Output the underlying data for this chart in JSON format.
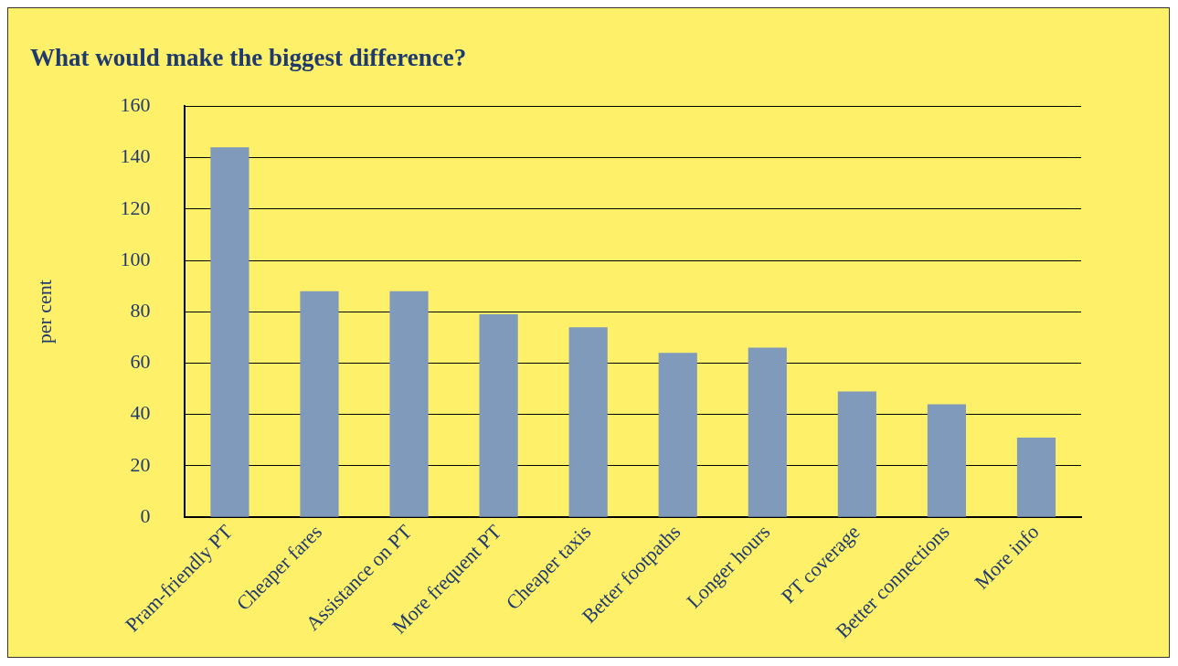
{
  "chart_data": {
    "type": "bar",
    "title": "What would make the biggest difference?",
    "ylabel": "per cent",
    "categories": [
      "Pram-friendly PT",
      "Cheaper fares",
      "Assistance on PT",
      "More frequent PT",
      "Cheaper taxis",
      "Better footpaths",
      "Longer hours",
      "PT coverage",
      "Better connections",
      "More info"
    ],
    "values": [
      144,
      88,
      88,
      79,
      74,
      64,
      66,
      49,
      44,
      31
    ],
    "color": "#7f9aba",
    "ylim": [
      0,
      160
    ],
    "yticks": [
      0,
      20,
      40,
      60,
      80,
      100,
      120,
      140,
      160
    ],
    "grid": "y",
    "legend": false
  }
}
